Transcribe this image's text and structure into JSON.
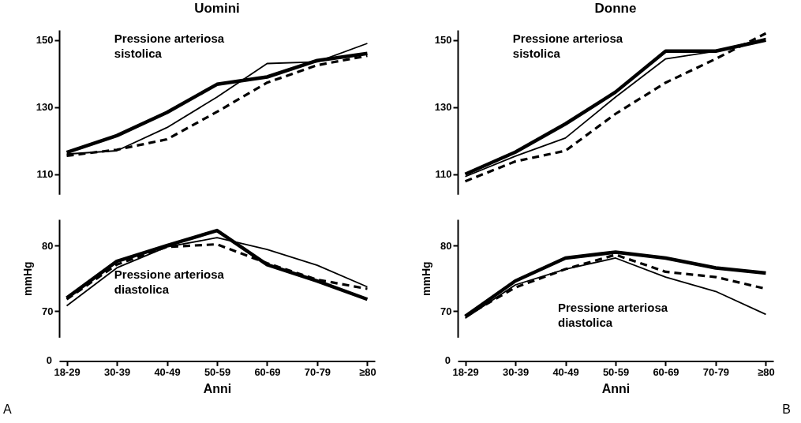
{
  "chart_data": [
    {
      "type": "line",
      "title": "Uomini",
      "categories": [
        null,
        null,
        null,
        null,
        null,
        null,
        null
      ],
      "ylim": [
        104,
        153
      ],
      "yticks": [
        110,
        130,
        150
      ],
      "grid": false,
      "marker": "none",
      "tick_labels": "y",
      "series": [
        {
          "color": "#000000",
          "line_style": "solid",
          "values": [
            116.5,
            121.5,
            128.4,
            136.8,
            139,
            143.9,
            146
          ]
        },
        {
          "color": "#000000",
          "line_style": "solid",
          "values": [
            116,
            117,
            123.9,
            133,
            143,
            143.5,
            149
          ]
        },
        {
          "color": "#000000",
          "line_style": "dashed",
          "values": [
            115.5,
            117.3,
            120.4,
            128.6,
            137.3,
            142.5,
            145.3
          ]
        }
      ],
      "annotations": [
        "Pressione arteriosa sistolica"
      ]
    },
    {
      "type": "line",
      "title": "Donne",
      "categories": [
        null,
        null,
        null,
        null,
        null,
        null,
        null
      ],
      "ylim": [
        104,
        153
      ],
      "yticks": [
        110,
        130,
        150
      ],
      "grid": false,
      "marker": "none",
      "tick_labels": "y",
      "series": [
        {
          "color": "#000000",
          "line_style": "solid",
          "values": [
            110,
            116.6,
            125,
            134.5,
            146.7,
            146.7,
            150
          ]
        },
        {
          "color": "#000000",
          "line_style": "solid",
          "values": [
            109.3,
            115.4,
            120.8,
            133,
            144.4,
            146.7,
            150.5
          ]
        },
        {
          "color": "#000000",
          "line_style": "dashed",
          "values": [
            107.9,
            113.8,
            117,
            128,
            137.3,
            144.4,
            152
          ]
        }
      ],
      "annotations": [
        "Pressione arteriosa sistolica"
      ]
    },
    {
      "type": "line",
      "ylabel": "mmHg",
      "xlabel": "Anni",
      "categories": [
        "18-29",
        "30-39",
        "40-49",
        "50-59",
        "60-69",
        "70-79",
        "≥80"
      ],
      "ylim": [
        66,
        84
      ],
      "yticks": [
        70,
        80
      ],
      "grid": false,
      "marker": "none",
      "series": [
        {
          "color": "#000000",
          "line_style": "solid",
          "values": [
            72,
            77.6,
            80,
            82.3,
            77.1,
            74.6,
            71.8
          ]
        },
        {
          "color": "#000000",
          "line_style": "solid",
          "values": [
            70.8,
            76.6,
            79.8,
            81.2,
            79.4,
            77,
            73.7
          ]
        },
        {
          "color": "#000000",
          "line_style": "dashed",
          "values": [
            71.8,
            77.1,
            79.8,
            80.2,
            77.3,
            74.8,
            73.4
          ]
        }
      ],
      "annotations": [
        "Pressione arteriosa diastolica",
        "0",
        "A"
      ]
    },
    {
      "type": "line",
      "ylabel": "mmHg",
      "xlabel": "Anni",
      "categories": [
        "18-29",
        "30-39",
        "40-49",
        "50-59",
        "60-69",
        "70-79",
        "≥80"
      ],
      "ylim": [
        66,
        84
      ],
      "yticks": [
        70,
        80
      ],
      "grid": false,
      "marker": "none",
      "series": [
        {
          "color": "#000000",
          "line_style": "solid",
          "values": [
            69.2,
            74.6,
            78.1,
            79,
            78.1,
            76.6,
            75.8
          ]
        },
        {
          "color": "#000000",
          "line_style": "solid",
          "values": [
            68.9,
            74,
            76.4,
            78.1,
            75.2,
            73,
            69.5
          ]
        },
        {
          "color": "#000000",
          "line_style": "dashed",
          "values": [
            69.2,
            73.6,
            76.4,
            78.6,
            76,
            75.2,
            73.4
          ]
        }
      ],
      "annotations": [
        "Pressione arteriosa diastolica",
        "0",
        "B"
      ]
    }
  ]
}
